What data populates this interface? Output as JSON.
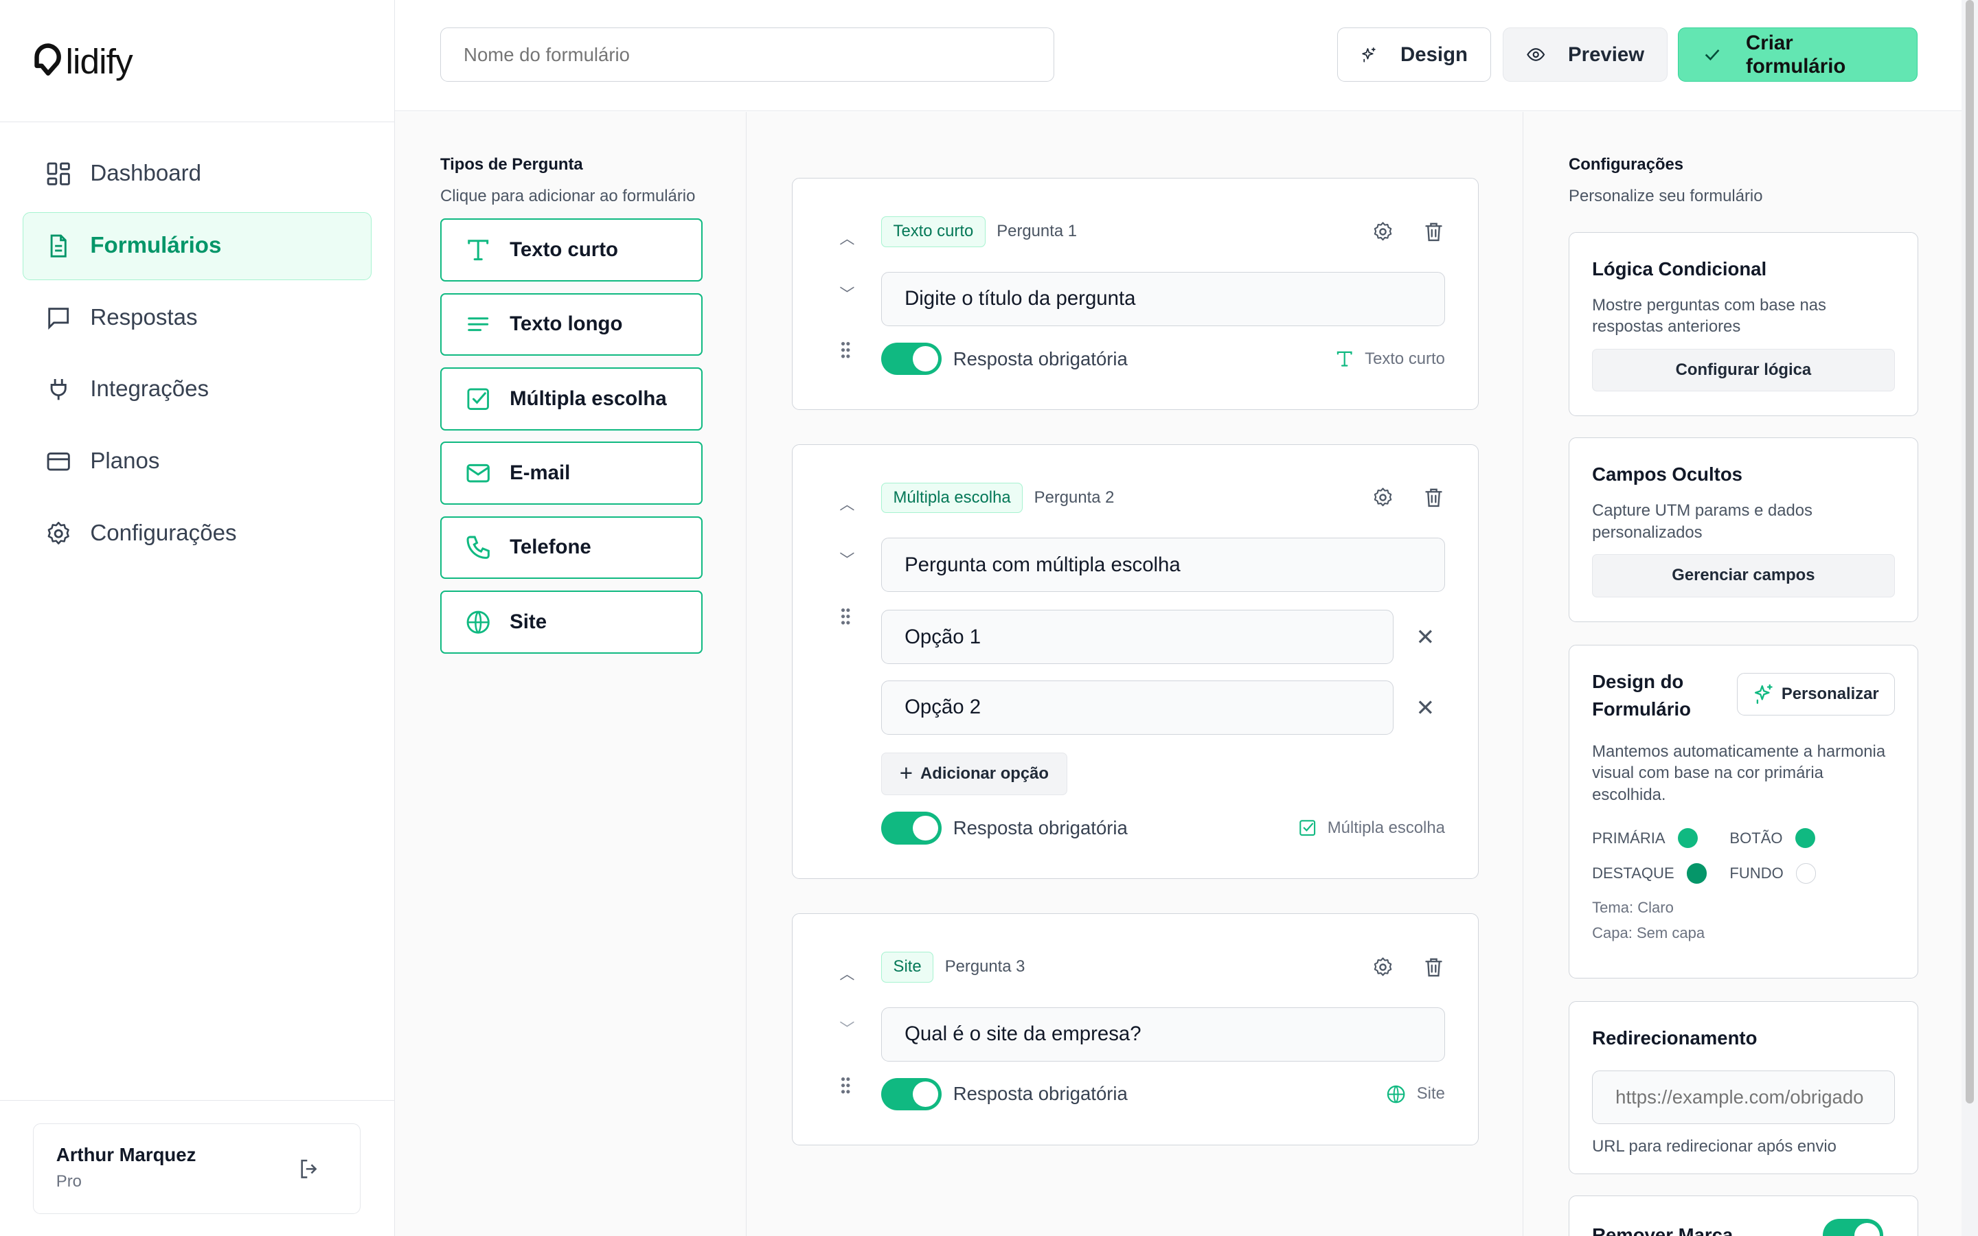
{
  "brand": {
    "name": "lidify",
    "accent": "#10b981"
  },
  "sidebar": {
    "items": [
      {
        "label": "Dashboard",
        "icon": "grid-icon"
      },
      {
        "label": "Formulários",
        "icon": "file-icon",
        "active": true
      },
      {
        "label": "Respostas",
        "icon": "message-icon"
      },
      {
        "label": "Integrações",
        "icon": "plug-icon"
      },
      {
        "label": "Planos",
        "icon": "card-icon"
      },
      {
        "label": "Configurações",
        "icon": "gear-icon"
      }
    ],
    "user": {
      "name": "Arthur Marquez",
      "plan": "Pro"
    }
  },
  "header": {
    "form_name_placeholder": "Nome do formulário",
    "design": "Design",
    "preview": "Preview",
    "create": "Criar formulário"
  },
  "types": {
    "title": "Tipos de Pergunta",
    "subtitle": "Clique para adicionar ao formulário",
    "items": [
      "Texto curto",
      "Texto longo",
      "Múltipla escolha",
      "E-mail",
      "Telefone",
      "Site"
    ]
  },
  "questions": [
    {
      "type": "Texto curto",
      "label": "Pergunta 1",
      "title": "Digite o título da pergunta",
      "required": "Resposta obrigatória",
      "type_label": "Texto curto"
    },
    {
      "type": "Múltipla escolha",
      "label": "Pergunta 2",
      "title": "Pergunta com múltipla escolha",
      "options": [
        "Opção 1",
        "Opção 2"
      ],
      "add_option": "Adicionar opção",
      "required": "Resposta obrigatória",
      "type_label": "Múltipla escolha"
    },
    {
      "type": "Site",
      "label": "Pergunta 3",
      "title": "Qual é o site da empresa?",
      "required": "Resposta obrigatória",
      "type_label": "Site"
    }
  ],
  "settings": {
    "title": "Configurações",
    "subtitle": "Personalize seu formulário",
    "logic": {
      "title": "Lógica Condicional",
      "desc": "Mostre perguntas com base nas respostas anteriores",
      "button": "Configurar lógica"
    },
    "hidden": {
      "title": "Campos Ocultos",
      "desc": "Capture UTM params e dados personalizados",
      "button": "Gerenciar campos"
    },
    "design": {
      "title": "Design do Formulário",
      "button": "Personalizar",
      "desc": "Mantemos automaticamente a harmonia visual com base na cor primária escolhida.",
      "colors": [
        {
          "label": "PRIMÁRIA",
          "hex": "#10b981"
        },
        {
          "label": "BOTÃO",
          "hex": "#10b981"
        },
        {
          "label": "DESTAQUE",
          "hex": "#059669"
        },
        {
          "label": "FUNDO",
          "hex": "#ffffff"
        }
      ],
      "theme": "Tema: Claro",
      "cover": "Capa: Sem capa"
    },
    "redirect": {
      "title": "Redirecionamento",
      "placeholder": "https://example.com/obrigado",
      "help": "URL para redirecionar após envio"
    },
    "branding": {
      "title": "Remover Marca",
      "enabled": true
    }
  }
}
